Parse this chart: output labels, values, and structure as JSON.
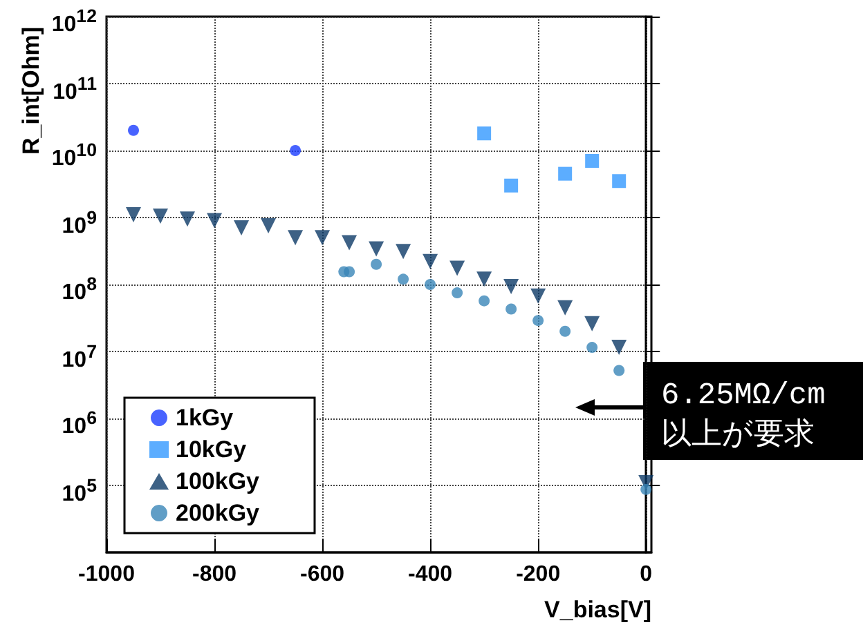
{
  "chart_data": {
    "type": "scatter",
    "xlabel": "V_bias[V]",
    "ylabel": "R_int[Ohm]",
    "log": "y",
    "grid": true,
    "legend": "bottom left",
    "xlim": [
      -1000,
      10
    ],
    "ylim": [
      10000,
      1000000000000
    ],
    "xticks": [
      -1000,
      -800,
      -600,
      -400,
      -200,
      0
    ],
    "yticks": [
      {
        "value": 100000,
        "label": "10$^{5}$"
      },
      {
        "value": 1000000,
        "label": "10$^{6}$"
      },
      {
        "value": 10000000,
        "label": "10$^{7}$"
      },
      {
        "value": 100000000,
        "label": "10$^{8}$"
      },
      {
        "value": 1000000000,
        "label": "10$^{9}$"
      },
      {
        "value": 10000000000,
        "label": "10$^{10}$"
      },
      {
        "value": 100000000000,
        "label": "10$^{11}$"
      },
      {
        "value": 1000000000000,
        "label": "10$^{12}$"
      }
    ],
    "series": [
      {
        "name": "1kGy",
        "color": "#1a3cff",
        "marker": "circle",
        "x": [
          -950,
          -650
        ],
        "values": [
          20000000000,
          10000000000
        ]
      },
      {
        "name": "10kGy",
        "color": "#3399ff",
        "marker": "square",
        "x": [
          -300,
          -250,
          -150,
          -100,
          -50
        ],
        "values": [
          18000000000,
          3000000000,
          4500000000,
          7000000000,
          3500000000
        ]
      },
      {
        "name": "100kGy",
        "color": "#0d3a66",
        "marker": "triangle",
        "x": [
          -950,
          -900,
          -850,
          -800,
          -750,
          -700,
          -650,
          -600,
          -550,
          -500,
          -450,
          -400,
          -350,
          -300,
          -250,
          -200,
          -150,
          -100,
          -50,
          0
        ],
        "values": [
          1100000000,
          1050000000,
          950000000,
          900000000,
          700000000,
          750000000,
          500000000,
          500000000,
          420000000,
          340000000,
          310000000,
          220000000,
          175000000,
          120000000,
          93000000,
          67000000,
          45000000,
          26000000,
          11500000,
          110000
        ]
      },
      {
        "name": "200kGy",
        "color": "#3a86b8",
        "marker": "circle",
        "x": [
          -560,
          -550,
          -500,
          -450,
          -400,
          -350,
          -300,
          -250,
          -200,
          -150,
          -100,
          -50,
          0
        ],
        "values": [
          155000000,
          155000000,
          200000000,
          120000000,
          100000000,
          75000000,
          57000000,
          43000000,
          29000000,
          20000000,
          11500000,
          5200000,
          87000
        ]
      }
    ],
    "annotations": [
      "6.25MΩ/cm\n以上が要求"
    ]
  }
}
